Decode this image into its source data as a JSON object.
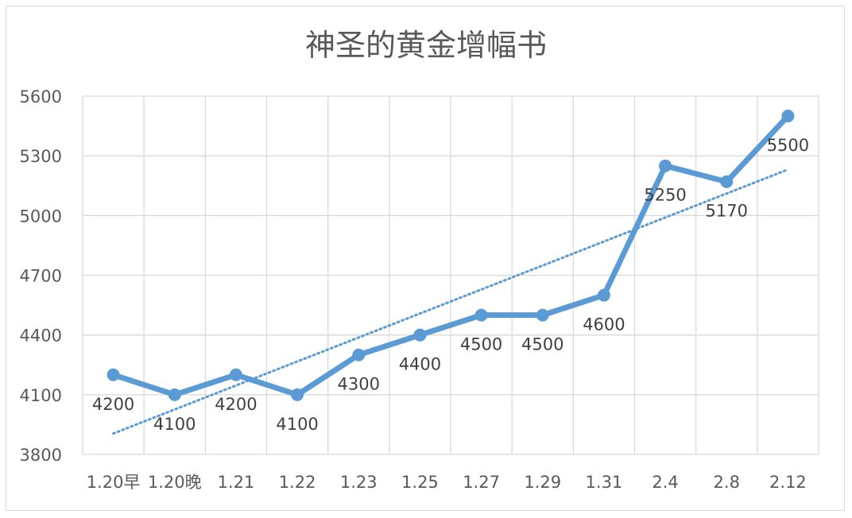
{
  "chart_data": {
    "type": "line",
    "title": "神圣的黄金增幅书",
    "xlabel": "",
    "ylabel": "",
    "categories": [
      "1.20早",
      "1.20晚",
      "1.21",
      "1.22",
      "1.23",
      "1.25",
      "1.27",
      "1.29",
      "1.31",
      "2.4",
      "2.8",
      "2.12"
    ],
    "series": [
      {
        "values": [
          4200,
          4100,
          4200,
          4100,
          4300,
          4400,
          4500,
          4500,
          4600,
          5250,
          5170,
          5500
        ],
        "data_labels": [
          "4200",
          "4100",
          "4200",
          "4100",
          "4300",
          "4400",
          "4500",
          "4500",
          "4600",
          "5250",
          "5170",
          "5500"
        ],
        "color": "#5b9bd5",
        "marker": "circle"
      }
    ],
    "trendline": {
      "type": "linear",
      "style": "dotted",
      "color": "#5b9bd5"
    },
    "ylim": [
      3800,
      5600
    ],
    "yticks": [
      "3800",
      "4100",
      "4400",
      "4700",
      "5000",
      "5300",
      "5600"
    ],
    "grid": true,
    "legend": "none"
  }
}
